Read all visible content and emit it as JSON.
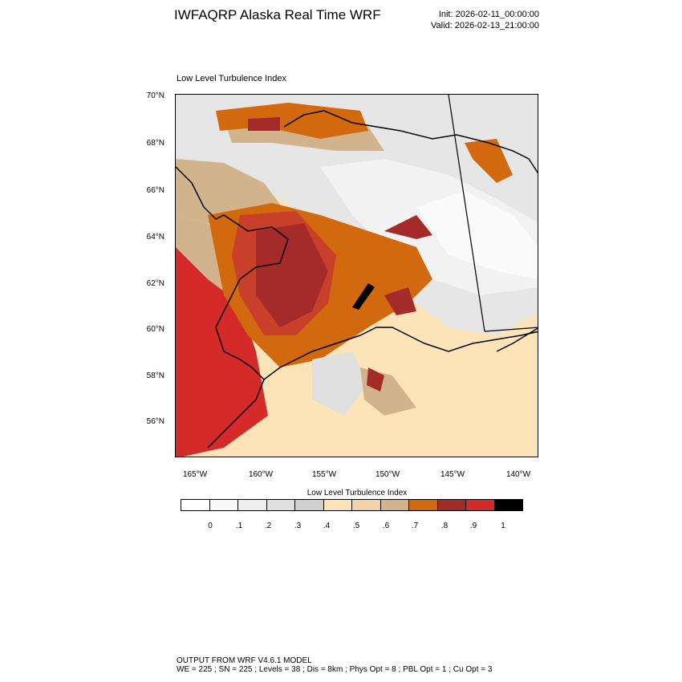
{
  "header": {
    "title": "IWFAQRP Alaska Real Time WRF",
    "init": "Init: 2026-02-11_00:00:00",
    "valid": "Valid: 2026-02-13_21:00:00"
  },
  "map": {
    "subtitle": "Low Level Turbulence Index",
    "lat_labels": [
      "70°N",
      "68°N",
      "66°N",
      "64°N",
      "62°N",
      "60°N",
      "58°N",
      "56°N"
    ],
    "lon_labels": [
      "165°W",
      "160°W",
      "155°W",
      "150°W",
      "145°W",
      "140°W"
    ]
  },
  "colorbar": {
    "title": "Low Level Turbulence Index",
    "colors": [
      "#ffffff",
      "#f8f8f8",
      "#eeeeee",
      "#e0e0e0",
      "#d0d0d0",
      "#fde4b8",
      "#f0d3a6",
      "#d2b48c",
      "#d2690e",
      "#a52a2a",
      "#d42a2a",
      "#000000"
    ],
    "labels": [
      "0",
      ".1",
      ".2",
      ".3",
      ".4",
      ".5",
      ".6",
      ".7",
      ".8",
      ".9",
      "1"
    ]
  },
  "footer": {
    "line1": "OUTPUT FROM WRF V4.6.1 MODEL",
    "line2": "WE = 225 ; SN = 225 ; Levels = 38 ; Dis = 8km ; Phys Opt = 8 ; PBL Opt = 1 ; Cu Opt = 3"
  }
}
